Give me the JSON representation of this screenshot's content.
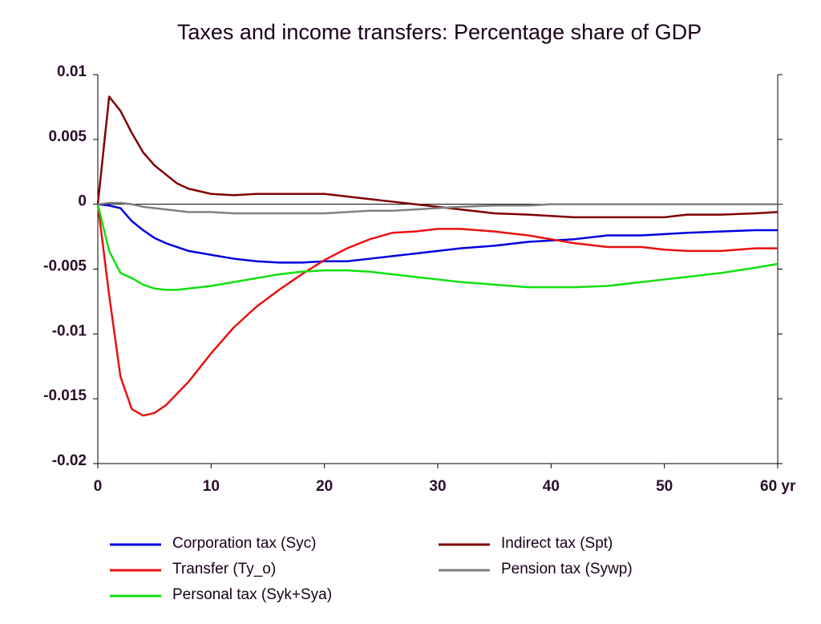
{
  "chart_data": {
    "type": "line",
    "title": "Taxes and income transfers: Percentage share of GDP",
    "x": [
      0,
      1,
      2,
      3,
      4,
      5,
      6,
      7,
      8,
      10,
      12,
      14,
      16,
      18,
      20,
      22,
      24,
      26,
      28,
      30,
      32,
      35,
      38,
      40,
      42,
      45,
      48,
      50,
      52,
      55,
      58,
      60
    ],
    "xlim": [
      0,
      60
    ],
    "xticks": [
      0,
      10,
      20,
      30,
      40,
      50,
      {
        "value": 60,
        "label": "60 yr"
      }
    ],
    "ylim": [
      -0.02,
      0.01
    ],
    "yticks": [
      0.01,
      0.005,
      0,
      -0.005,
      -0.01,
      -0.015,
      -0.02
    ],
    "series": [
      {
        "name": "Corporation tax (Syc)",
        "color": "#0000e0",
        "values": [
          0,
          -0.0001,
          -0.0003,
          -0.0013,
          -0.002,
          -0.0026,
          -0.003,
          -0.0033,
          -0.0036,
          -0.0039,
          -0.0042,
          -0.0044,
          -0.0045,
          -0.0045,
          -0.0044,
          -0.0044,
          -0.0042,
          -0.004,
          -0.0038,
          -0.0036,
          -0.0034,
          -0.0032,
          -0.0029,
          -0.0028,
          -0.0027,
          -0.0024,
          -0.0024,
          -0.0023,
          -0.0022,
          -0.0021,
          -0.002,
          -0.002
        ]
      },
      {
        "name": "Transfer (Ty_o)",
        "color": "#e81010",
        "values": [
          0,
          -0.007,
          -0.0133,
          -0.0158,
          -0.0163,
          -0.0161,
          -0.0155,
          -0.0146,
          -0.0137,
          -0.0115,
          -0.0095,
          -0.0079,
          -0.0066,
          -0.0054,
          -0.0043,
          -0.0034,
          -0.0027,
          -0.0022,
          -0.0021,
          -0.0019,
          -0.0019,
          -0.0021,
          -0.0024,
          -0.0027,
          -0.003,
          -0.0033,
          -0.0033,
          -0.0035,
          -0.0036,
          -0.0036,
          -0.0034,
          -0.0034
        ]
      },
      {
        "name": "Personal tax (Syk+Sya)",
        "color": "#10e010",
        "values": [
          0,
          -0.0036,
          -0.0053,
          -0.0057,
          -0.0062,
          -0.0065,
          -0.0066,
          -0.0066,
          -0.0065,
          -0.0063,
          -0.006,
          -0.0057,
          -0.0054,
          -0.0052,
          -0.0051,
          -0.0051,
          -0.0052,
          -0.0054,
          -0.0056,
          -0.0058,
          -0.006,
          -0.0062,
          -0.0064,
          -0.0064,
          -0.0064,
          -0.0063,
          -0.006,
          -0.0058,
          -0.0056,
          -0.0053,
          -0.0049,
          -0.0046
        ]
      },
      {
        "name": "Indirect tax (Spt)",
        "color": "#800000",
        "values": [
          0,
          0.0083,
          0.0072,
          0.0055,
          0.004,
          0.003,
          0.0023,
          0.0016,
          0.0012,
          0.0008,
          0.0007,
          0.0008,
          0.0008,
          0.0008,
          0.0008,
          0.0006,
          0.0004,
          0.0002,
          0,
          -0.0002,
          -0.0004,
          -0.0007,
          -0.0008,
          -0.0009,
          -0.001,
          -0.001,
          -0.001,
          -0.001,
          -0.0008,
          -0.0008,
          -0.0007,
          -0.0006
        ]
      },
      {
        "name": "Pension tax (Sywp)",
        "color": "#808080",
        "values": [
          0,
          0.0001,
          0.0001,
          0,
          -0.0002,
          -0.0003,
          -0.0004,
          -0.0005,
          -0.0006,
          -0.0006,
          -0.0007,
          -0.0007,
          -0.0007,
          -0.0007,
          -0.0007,
          -0.0006,
          -0.0005,
          -0.0005,
          -0.0004,
          -0.0003,
          -0.0002,
          -0.0001,
          -0.0001,
          0,
          0,
          0,
          0,
          0,
          0,
          0,
          0,
          0
        ]
      }
    ]
  }
}
